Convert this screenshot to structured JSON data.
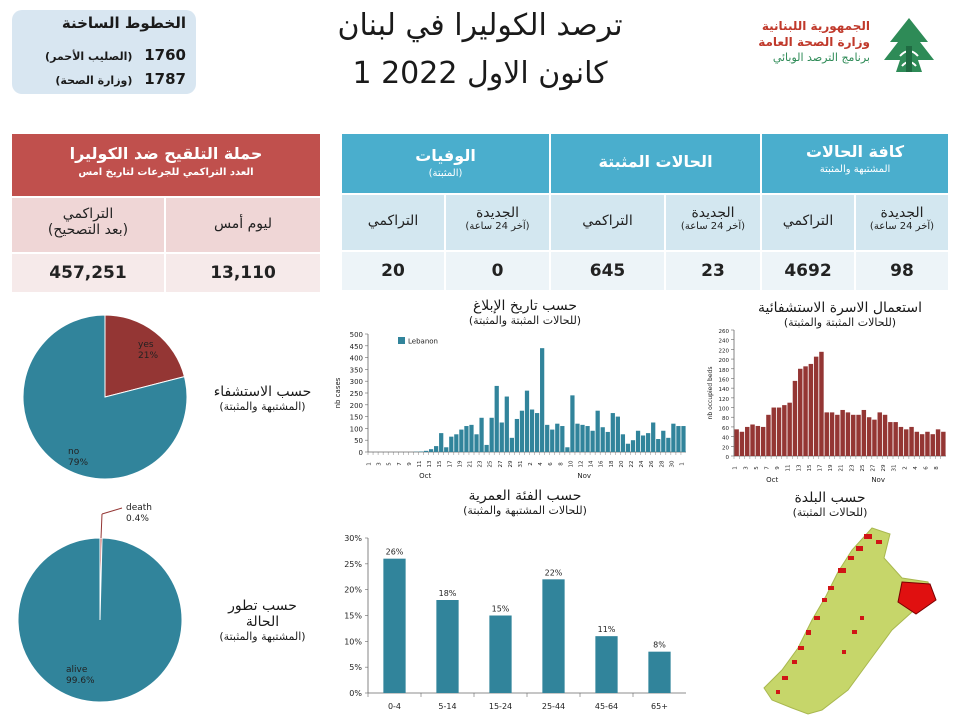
{
  "hotlines": {
    "title": "الخطوط الساخنة",
    "lines": [
      {
        "number": "1760",
        "label": "(الصليب الأحمر)"
      },
      {
        "number": "1787",
        "label": "(وزارة الصحة)"
      }
    ]
  },
  "header": {
    "title_line1": "ترصد الكوليرا في لبنان",
    "title_line2": "1 كانون الاول 2022"
  },
  "ministry": {
    "line1": "الجمهورية اللبنانية",
    "line2": "وزارة الصحة العامة",
    "line3": "برنامج الترصد الوبائي"
  },
  "colors": {
    "blue": "#4aaecd",
    "teal": "#31849b",
    "red": "#c0504d",
    "darkred": "#943634",
    "green": "#c6d66a"
  },
  "cases_table": {
    "groups": [
      {
        "title": "كافة الحالات",
        "subtitle": "المشتبهة والمثبتة",
        "new_label": "الجديدة",
        "new_sub": "(آخر 24 ساعة)",
        "cum_label": "التراكمي",
        "new_value": "98",
        "cum_value": "4692"
      },
      {
        "title": "الحالات المثبتة",
        "subtitle": "",
        "new_label": "الجديدة",
        "new_sub": "(آخر 24 ساعة)",
        "cum_label": "التراكمي",
        "new_value": "23",
        "cum_value": "645"
      },
      {
        "title": "الوفيات",
        "subtitle": "(المثبتة)",
        "new_label": "الجديدة",
        "new_sub": "(آخر 24 ساعة)",
        "cum_label": "التراكمي",
        "new_value": "0",
        "cum_value": "20"
      }
    ]
  },
  "vaccine_table": {
    "title": "حملة التلقيح ضد الكوليرا",
    "subtitle": "العدد التراكمي للجرعات لتاريخ امس",
    "col_yesterday": "ليوم أمس",
    "col_cum_l1": "التراكمي",
    "col_cum_l2": "(بعد التصحيح)",
    "yesterday_value": "13,110",
    "cum_value": "457,251"
  },
  "labels": {
    "hosp_a": "حسب الاستشفاء",
    "hosp_b": "(المشتبهة والمثبتة)",
    "outcome_a1": "حسب تطور",
    "outcome_a2": "الحالة",
    "outcome_b": "(المشتبهة والمثبتة)",
    "report_a": "حسب تاريخ الإبلاغ",
    "report_b": "(للحالات المثبتة والمثبتة)",
    "beds_a": "استعمال الاسرة الاستشفائية",
    "beds_b": "(للحالات المثبتة والمثبتة)",
    "age_a": "حسب الفئة العمرية",
    "age_b": "(للحالات المشتبهة والمثبتة)",
    "town_a": "حسب البلدة",
    "town_b": "(للحالات المثبتة)"
  },
  "chart_data": [
    {
      "id": "hospitalization",
      "type": "pie",
      "slices": [
        {
          "label": "yes",
          "value": 21,
          "display": "21%",
          "color": "#943634"
        },
        {
          "label": "no",
          "value": 79,
          "display": "79%",
          "color": "#31849b"
        }
      ]
    },
    {
      "id": "outcome",
      "type": "pie",
      "slices": [
        {
          "label": "death",
          "value": 0.4,
          "display": "0.4%",
          "color": "#c0504d"
        },
        {
          "label": "alive",
          "value": 99.6,
          "display": "99.6%",
          "color": "#31849b"
        }
      ]
    },
    {
      "id": "report_date",
      "type": "bar",
      "ylabel": "nb cases",
      "ylim": [
        0,
        500
      ],
      "yticks": [
        0,
        50,
        100,
        150,
        200,
        250,
        300,
        350,
        400,
        450,
        500
      ],
      "legend": "Lebanon",
      "month_labels": [
        "Oct",
        "Nov"
      ],
      "values": [
        0,
        0,
        0,
        0,
        0,
        0,
        0,
        0,
        0,
        1,
        2,
        5,
        12,
        25,
        80,
        20,
        65,
        75,
        95,
        110,
        115,
        75,
        145,
        30,
        145,
        280,
        125,
        235,
        60,
        140,
        175,
        260,
        180,
        165,
        440,
        115,
        95,
        120,
        110,
        20,
        240,
        120,
        115,
        110,
        90,
        175,
        105,
        85,
        165,
        150,
        75,
        35,
        50,
        90,
        70,
        80,
        125,
        55,
        90,
        60,
        120,
        110,
        110
      ]
    },
    {
      "id": "beds",
      "type": "bar",
      "ylabel": "nb occupied beds",
      "ylim": [
        0,
        260
      ],
      "yticks": [
        0,
        20,
        40,
        60,
        80,
        100,
        120,
        140,
        160,
        180,
        200,
        220,
        240,
        260
      ],
      "month_labels": [
        "Oct",
        "Nov"
      ],
      "values": [
        55,
        50,
        60,
        65,
        62,
        60,
        85,
        100,
        100,
        105,
        110,
        155,
        180,
        185,
        190,
        205,
        215,
        90,
        90,
        85,
        95,
        90,
        85,
        85,
        95,
        80,
        75,
        90,
        85,
        70,
        70,
        60,
        55,
        60,
        50,
        45,
        50,
        45,
        55,
        50
      ]
    },
    {
      "id": "age_group",
      "type": "bar",
      "categories": [
        "0-4",
        "5-14",
        "15-24",
        "25-44",
        "45-64",
        "65+"
      ],
      "values": [
        26,
        18,
        15,
        22,
        11,
        8
      ],
      "value_labels": [
        "26%",
        "18%",
        "15%",
        "22%",
        "11%",
        "8%"
      ],
      "ylim": [
        0,
        30
      ],
      "yticks": [
        "0%",
        "5%",
        "10%",
        "15%",
        "20%",
        "25%",
        "30%"
      ]
    }
  ]
}
